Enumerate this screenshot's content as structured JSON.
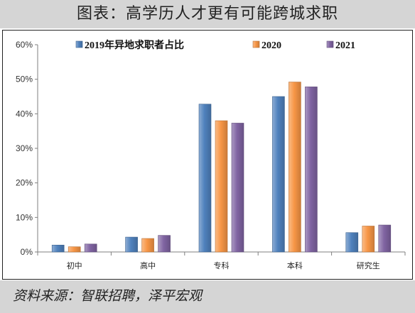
{
  "figure_title": "图表：高学历人才更有可能跨城求职",
  "source_note": "资料来源：智联招聘，泽平宏观",
  "colors": {
    "series_2019": "#4f81bd",
    "series_2020": "#f79646",
    "series_2021": "#8064a2",
    "panel_bg": "#d5d5d5"
  },
  "chart_data": {
    "type": "bar",
    "title": "",
    "xlabel": "",
    "ylabel": "",
    "categories": [
      "初中",
      "高中",
      "专科",
      "本科",
      "研究生"
    ],
    "series": [
      {
        "name": "2019年异地求职者占比",
        "values": [
          2.0,
          4.3,
          42.8,
          45.0,
          5.6
        ]
      },
      {
        "name": "2020",
        "values": [
          1.5,
          3.9,
          38.0,
          49.2,
          7.5
        ]
      },
      {
        "name": "2021",
        "values": [
          2.3,
          4.8,
          37.3,
          47.8,
          7.8
        ]
      }
    ],
    "ylim": [
      0,
      60
    ],
    "yticks": [
      "0%",
      "10%",
      "20%",
      "30%",
      "40%",
      "50%",
      "60%"
    ],
    "y_unit": "%",
    "grid": false,
    "legend_position": "top-center"
  }
}
